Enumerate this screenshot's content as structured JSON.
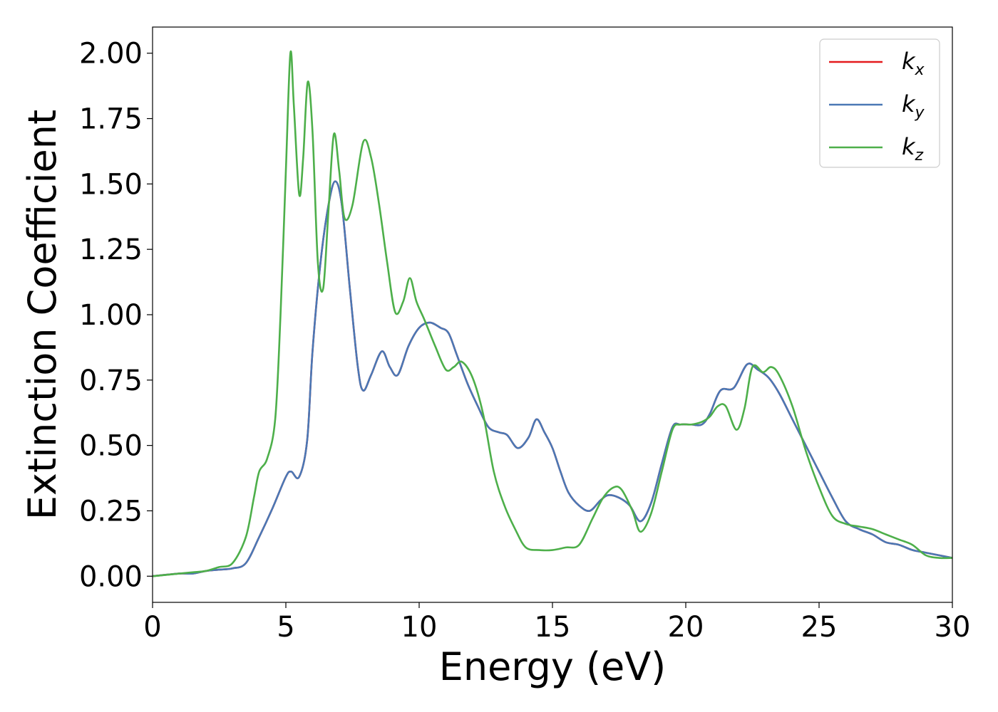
{
  "chart_data": {
    "type": "line",
    "title": "",
    "xlabel": "Energy (eV)",
    "ylabel": "Extinction Coefficient",
    "xlim": [
      0,
      30
    ],
    "ylim": [
      -0.1,
      2.1
    ],
    "x_ticks": [
      0,
      5,
      10,
      15,
      20,
      25,
      30
    ],
    "y_ticks": [
      0.0,
      0.25,
      0.5,
      0.75,
      1.0,
      1.25,
      1.5,
      1.75,
      2.0
    ],
    "x_tick_labels": [
      "0",
      "5",
      "10",
      "15",
      "20",
      "25",
      "30"
    ],
    "y_tick_labels": [
      "0.00",
      "0.25",
      "0.50",
      "0.75",
      "1.00",
      "1.25",
      "1.50",
      "1.75",
      "2.00"
    ],
    "grid": false,
    "legend_position": "top-right",
    "series": [
      {
        "name": "k_x",
        "legend_main": "k",
        "legend_sub": "x",
        "color": "#e41a1c",
        "x": [
          0,
          1,
          1.5,
          2,
          2.5,
          3,
          3.5,
          4,
          4.5,
          5,
          5.2,
          5.5,
          5.8,
          6.0,
          6.3,
          6.6,
          6.85,
          7.1,
          7.4,
          7.7,
          7.9,
          8.2,
          8.6,
          8.9,
          9.2,
          9.6,
          10.0,
          10.4,
          10.8,
          11.1,
          11.4,
          11.8,
          12.2,
          12.6,
          13.0,
          13.3,
          13.7,
          14.1,
          14.4,
          14.7,
          15.0,
          15.3,
          15.6,
          16.0,
          16.4,
          16.8,
          17.1,
          17.5,
          17.9,
          18.3,
          18.7,
          19.1,
          19.5,
          19.8,
          20.2,
          20.6,
          20.9,
          21.3,
          21.8,
          22.3,
          22.7,
          23.1,
          23.5,
          24.0,
          24.5,
          25.0,
          25.5,
          26.0,
          26.5,
          27.0,
          27.5,
          28.0,
          28.5,
          29.0,
          30.0
        ],
        "y": [
          0.0,
          0.01,
          0.01,
          0.02,
          0.025,
          0.03,
          0.05,
          0.15,
          0.26,
          0.38,
          0.4,
          0.38,
          0.52,
          0.86,
          1.2,
          1.42,
          1.51,
          1.42,
          1.1,
          0.8,
          0.71,
          0.77,
          0.86,
          0.8,
          0.77,
          0.88,
          0.95,
          0.97,
          0.95,
          0.93,
          0.85,
          0.74,
          0.65,
          0.57,
          0.55,
          0.54,
          0.49,
          0.53,
          0.6,
          0.55,
          0.49,
          0.4,
          0.32,
          0.27,
          0.25,
          0.29,
          0.31,
          0.3,
          0.27,
          0.21,
          0.28,
          0.43,
          0.57,
          0.58,
          0.58,
          0.58,
          0.62,
          0.71,
          0.72,
          0.81,
          0.79,
          0.76,
          0.7,
          0.6,
          0.5,
          0.4,
          0.3,
          0.21,
          0.18,
          0.16,
          0.13,
          0.12,
          0.1,
          0.09,
          0.07
        ]
      },
      {
        "name": "k_y",
        "legend_main": "k",
        "legend_sub": "y",
        "color": "#4a78b5",
        "x": [
          0,
          1,
          1.5,
          2,
          2.5,
          3,
          3.5,
          4,
          4.5,
          5,
          5.2,
          5.5,
          5.8,
          6.0,
          6.3,
          6.6,
          6.85,
          7.1,
          7.4,
          7.7,
          7.9,
          8.2,
          8.6,
          8.9,
          9.2,
          9.6,
          10.0,
          10.4,
          10.8,
          11.1,
          11.4,
          11.8,
          12.2,
          12.6,
          13.0,
          13.3,
          13.7,
          14.1,
          14.4,
          14.7,
          15.0,
          15.3,
          15.6,
          16.0,
          16.4,
          16.8,
          17.1,
          17.5,
          17.9,
          18.3,
          18.7,
          19.1,
          19.5,
          19.8,
          20.2,
          20.6,
          20.9,
          21.3,
          21.8,
          22.3,
          22.7,
          23.1,
          23.5,
          24.0,
          24.5,
          25.0,
          25.5,
          26.0,
          26.5,
          27.0,
          27.5,
          28.0,
          28.5,
          29.0,
          30.0
        ],
        "y": [
          0.0,
          0.01,
          0.01,
          0.02,
          0.025,
          0.03,
          0.05,
          0.15,
          0.26,
          0.38,
          0.4,
          0.38,
          0.52,
          0.86,
          1.2,
          1.42,
          1.51,
          1.42,
          1.1,
          0.8,
          0.71,
          0.77,
          0.86,
          0.8,
          0.77,
          0.88,
          0.95,
          0.97,
          0.95,
          0.93,
          0.85,
          0.74,
          0.65,
          0.57,
          0.55,
          0.54,
          0.49,
          0.53,
          0.6,
          0.55,
          0.49,
          0.4,
          0.32,
          0.27,
          0.25,
          0.29,
          0.31,
          0.3,
          0.27,
          0.21,
          0.28,
          0.43,
          0.57,
          0.58,
          0.58,
          0.58,
          0.62,
          0.71,
          0.72,
          0.81,
          0.79,
          0.76,
          0.7,
          0.6,
          0.5,
          0.4,
          0.3,
          0.21,
          0.18,
          0.16,
          0.13,
          0.12,
          0.1,
          0.09,
          0.07
        ]
      },
      {
        "name": "k_z",
        "legend_main": "k",
        "legend_sub": "z",
        "color": "#4daf4a",
        "x": [
          0,
          1,
          1.5,
          2,
          2.5,
          3,
          3.5,
          3.8,
          4.0,
          4.3,
          4.6,
          4.8,
          5.0,
          5.17,
          5.3,
          5.5,
          5.65,
          5.82,
          6.0,
          6.2,
          6.4,
          6.6,
          6.8,
          7.0,
          7.2,
          7.5,
          7.9,
          8.2,
          8.5,
          8.8,
          9.1,
          9.4,
          9.65,
          9.9,
          10.2,
          10.6,
          11.0,
          11.3,
          11.6,
          12.0,
          12.4,
          12.8,
          13.2,
          13.6,
          14.0,
          14.5,
          15.0,
          15.5,
          16.0,
          16.5,
          16.9,
          17.3,
          17.6,
          18.0,
          18.3,
          18.7,
          19.1,
          19.5,
          19.8,
          20.2,
          20.6,
          20.9,
          21.2,
          21.5,
          21.9,
          22.2,
          22.5,
          22.9,
          23.2,
          23.5,
          24.0,
          24.5,
          25.0,
          25.5,
          26.0,
          26.5,
          27.0,
          27.5,
          28.0,
          28.5,
          29.0,
          29.5,
          30.0
        ],
        "y": [
          0.0,
          0.01,
          0.015,
          0.02,
          0.035,
          0.05,
          0.15,
          0.3,
          0.4,
          0.45,
          0.6,
          1.0,
          1.55,
          2.0,
          1.8,
          1.46,
          1.6,
          1.89,
          1.7,
          1.2,
          1.1,
          1.4,
          1.69,
          1.55,
          1.37,
          1.42,
          1.66,
          1.6,
          1.42,
          1.2,
          1.01,
          1.05,
          1.14,
          1.05,
          0.98,
          0.88,
          0.79,
          0.8,
          0.82,
          0.76,
          0.62,
          0.4,
          0.27,
          0.18,
          0.11,
          0.1,
          0.1,
          0.11,
          0.12,
          0.22,
          0.3,
          0.34,
          0.33,
          0.25,
          0.17,
          0.24,
          0.4,
          0.56,
          0.58,
          0.58,
          0.59,
          0.61,
          0.65,
          0.65,
          0.56,
          0.64,
          0.8,
          0.78,
          0.8,
          0.77,
          0.65,
          0.48,
          0.34,
          0.23,
          0.2,
          0.19,
          0.18,
          0.16,
          0.14,
          0.12,
          0.08,
          0.07,
          0.07
        ]
      }
    ]
  }
}
